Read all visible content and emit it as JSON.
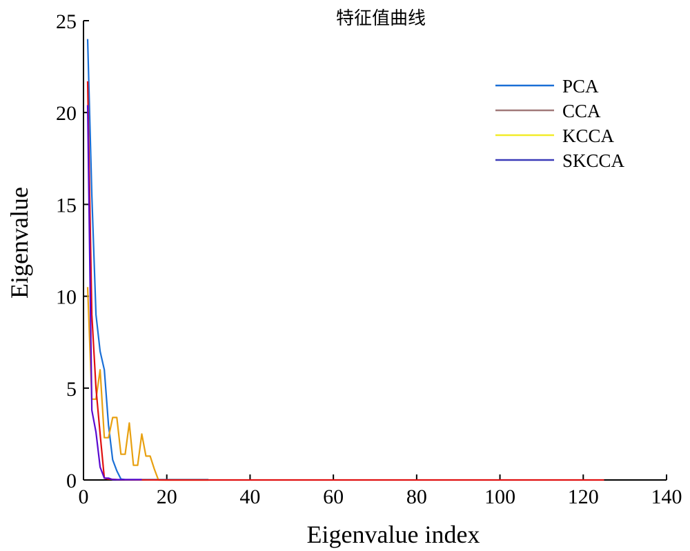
{
  "chart_data": {
    "type": "line",
    "title": "特征值曲线",
    "xlabel": "Eigenvalue index",
    "ylabel": "Eigenvalue",
    "xlim": [
      0,
      140
    ],
    "ylim": [
      0,
      25
    ],
    "xticks": [
      "0",
      "20",
      "40",
      "60",
      "80",
      "100",
      "120",
      "140"
    ],
    "yticks": [
      "0",
      "5",
      "10",
      "15",
      "20",
      "25"
    ],
    "grid": false,
    "legend_position": "top-right",
    "series": [
      {
        "name": "PCA",
        "color": "#1a6fd6",
        "legend_color": "#1a6fd6",
        "x": [
          1,
          2,
          3,
          4,
          5,
          6,
          7,
          8,
          9,
          10,
          12,
          15,
          20,
          25,
          30
        ],
        "y": [
          24.0,
          15.5,
          9.0,
          7.0,
          6.0,
          3.0,
          1.1,
          0.5,
          0.05,
          0.02,
          0.02,
          0.02,
          0.02,
          0.02,
          0.02
        ]
      },
      {
        "name": "CCA",
        "color": "#e01010",
        "legend_color": "#a07878",
        "x": [
          1,
          2,
          3,
          4,
          5,
          6,
          8,
          10,
          20,
          40,
          60,
          80,
          100,
          120,
          125
        ],
        "y": [
          21.7,
          9.0,
          5.0,
          2.5,
          0.1,
          0.05,
          0.02,
          0.01,
          0.0,
          0.0,
          0.0,
          0.0,
          0.0,
          0.0,
          0.0
        ]
      },
      {
        "name": "KCCA",
        "color": "#e8a010",
        "legend_color": "#f2ec28",
        "x": [
          1,
          2,
          3,
          4,
          5,
          6,
          7,
          8,
          9,
          10,
          11,
          12,
          13,
          14,
          15,
          16,
          17,
          18,
          20,
          25,
          30
        ],
        "y": [
          10.5,
          4.4,
          4.4,
          6.0,
          2.3,
          2.3,
          3.4,
          3.4,
          1.4,
          1.4,
          3.1,
          0.8,
          0.8,
          2.5,
          1.3,
          1.3,
          0.6,
          0.0,
          0.0,
          0.0,
          0.0
        ]
      },
      {
        "name": "SKCCA",
        "color": "#5a0ad0",
        "legend_color": "#3a3ab8",
        "x": [
          1,
          2,
          3,
          4,
          5,
          6,
          7,
          8,
          10,
          14
        ],
        "y": [
          20.4,
          3.8,
          2.6,
          0.7,
          0.1,
          0.1,
          0.02,
          0.02,
          0.02,
          0.02
        ]
      }
    ]
  }
}
